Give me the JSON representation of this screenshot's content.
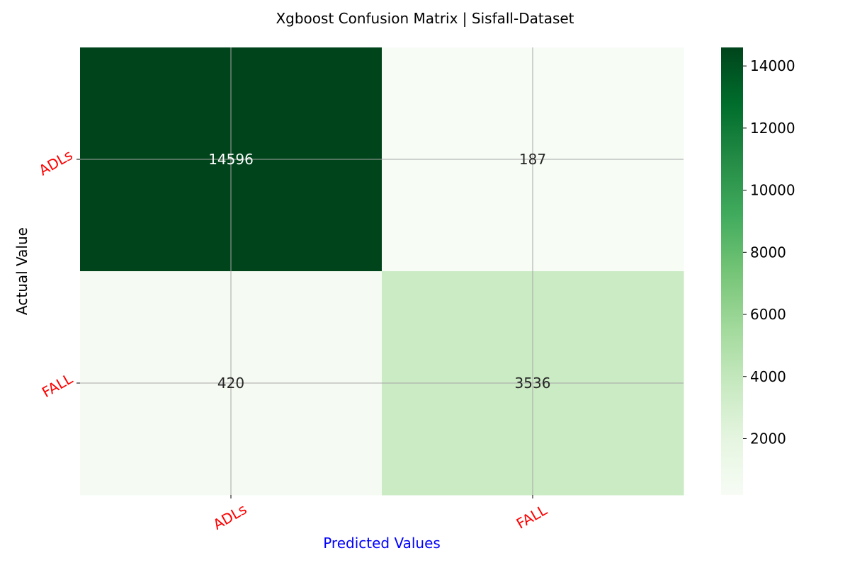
{
  "chart_data": {
    "type": "heatmap",
    "title": "Xgboost Confusion Matrix | Sisfall-Dataset",
    "xlabel": "Predicted Values",
    "ylabel": "Actual Value",
    "x_categories": [
      "ADLs",
      "FALL"
    ],
    "y_categories": [
      "ADLs",
      "FALL"
    ],
    "values": [
      [
        14596,
        187
      ],
      [
        420,
        3536
      ]
    ],
    "colorbar": {
      "range": [
        187,
        14596
      ],
      "ticks": [
        "2000",
        "4000",
        "6000",
        "8000",
        "10000",
        "12000",
        "14000"
      ],
      "colormap": "Greens"
    },
    "grid": true
  },
  "colors": {
    "tick_label": "#ff0000",
    "xlabel": "#0000ff",
    "ylabel": "#000000",
    "title": "#000000",
    "grid": "#a6a6a6"
  }
}
